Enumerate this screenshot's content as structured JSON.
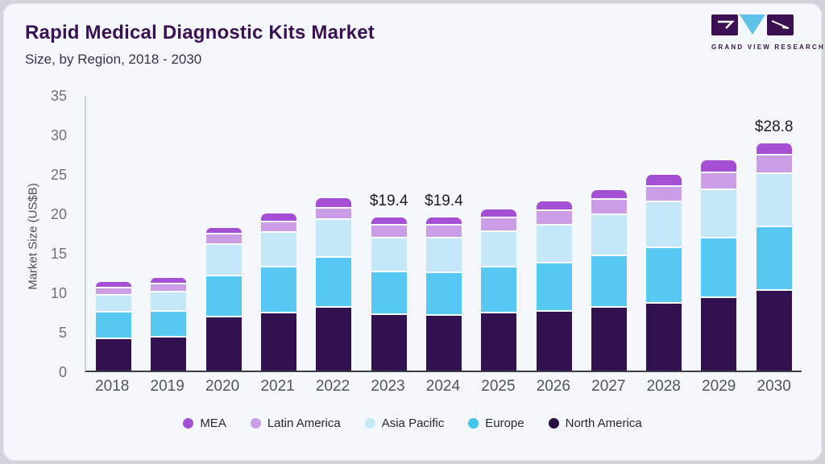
{
  "header": {
    "title": "Rapid Medical Diagnostic Kits Market",
    "subtitle": "Size, by Region, 2018 - 2030"
  },
  "logo": {
    "brand": "GRAND VIEW RESEARCH",
    "colors": {
      "block": "#3b1152",
      "triangle": "#5ec1e8"
    }
  },
  "chart_data": {
    "type": "bar",
    "stacked": true,
    "title": "Rapid Medical Diagnostic Kits Market",
    "subtitle": "Size, by Region, 2018 - 2030",
    "ylabel": "Market Size (US$B)",
    "ylim": [
      0,
      35
    ],
    "yticks": [
      0,
      5,
      10,
      15,
      20,
      25,
      30,
      35
    ],
    "grid": false,
    "legend_position": "bottom",
    "categories": [
      "2018",
      "2019",
      "2020",
      "2021",
      "2022",
      "2023",
      "2024",
      "2025",
      "2026",
      "2027",
      "2028",
      "2029",
      "2030"
    ],
    "series": [
      {
        "name": "North America",
        "color": "#321150",
        "values": [
          4.2,
          4.4,
          6.9,
          7.5,
          8.2,
          7.2,
          7.1,
          7.5,
          7.7,
          8.2,
          8.7,
          9.4,
          10.3
        ]
      },
      {
        "name": "Europe",
        "color": "#56c8f2",
        "values": [
          3.4,
          3.3,
          5.2,
          5.8,
          6.3,
          5.5,
          5.5,
          5.8,
          6.1,
          6.5,
          7.0,
          7.5,
          8.1
        ]
      },
      {
        "name": "Asia Pacific",
        "color": "#c4e7f9",
        "values": [
          2.1,
          2.4,
          4.0,
          4.4,
          4.8,
          4.2,
          4.3,
          4.5,
          4.8,
          5.2,
          5.8,
          6.2,
          6.7
        ]
      },
      {
        "name": "Latin America",
        "color": "#cb9de7",
        "values": [
          0.9,
          1.0,
          1.4,
          1.3,
          1.4,
          1.7,
          1.7,
          1.7,
          1.8,
          1.9,
          2.0,
          2.1,
          2.4
        ]
      },
      {
        "name": "MEA",
        "color": "#a44fd4",
        "values": [
          0.6,
          0.6,
          0.6,
          0.9,
          1.1,
          0.8,
          0.8,
          0.9,
          1.0,
          1.1,
          1.3,
          1.4,
          1.3
        ]
      }
    ],
    "stack_order": "bottom_to_top",
    "annotations": [
      {
        "category": "2023",
        "label": "$19.4"
      },
      {
        "category": "2024",
        "label": "$19.4"
      },
      {
        "category": "2030",
        "label": "$28.8"
      }
    ],
    "legend": [
      {
        "label": "MEA",
        "color": "#a44fd4"
      },
      {
        "label": "Latin America",
        "color": "#cb9de7"
      },
      {
        "label": "Asia Pacific",
        "color": "#c4e7f9"
      },
      {
        "label": "Europe",
        "color": "#45c6f1"
      },
      {
        "label": "North America",
        "color": "#2c0f45"
      }
    ]
  }
}
